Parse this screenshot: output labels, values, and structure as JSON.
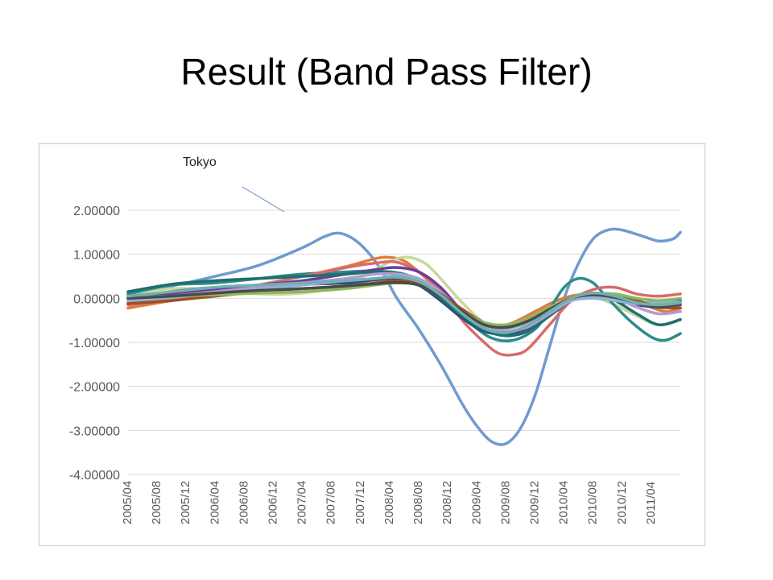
{
  "slide": {
    "title": "Result (Band Pass  Filter)"
  },
  "chart_data": {
    "type": "line",
    "ylim": [
      -4,
      2.2
    ],
    "y_ticks": [
      2,
      1,
      0,
      -1,
      -2,
      -3,
      -4
    ],
    "y_tick_labels": [
      "2.00000",
      "1.00000",
      "0.00000",
      "-1.00000",
      "-2.00000",
      "-3.00000",
      "-4.00000"
    ],
    "x_tick_labels": [
      "2005/04",
      "2005/08",
      "2005/12",
      "2006/04",
      "2006/08",
      "2006/12",
      "2007/04",
      "2007/08",
      "2007/12",
      "2008/04",
      "2008/08",
      "2008/12",
      "2009/04",
      "2009/08",
      "2009/12",
      "2010/04",
      "2010/08",
      "2010/12",
      "2011/04"
    ],
    "x_start": "2005/04",
    "x_end": "2011/06",
    "grid": true,
    "legend": "none",
    "annotation": {
      "text": "Tokyo",
      "points_to": "series-1"
    },
    "series": [
      {
        "color": "#6f9bcf",
        "values": [
          [
            0,
            0.08
          ],
          [
            6,
            0.28
          ],
          [
            12,
            0.5
          ],
          [
            18,
            0.75
          ],
          [
            24,
            1.15
          ],
          [
            27,
            1.4
          ],
          [
            29,
            1.48
          ],
          [
            31,
            1.35
          ],
          [
            33,
            1.05
          ],
          [
            35,
            0.6
          ],
          [
            37,
            0.0
          ],
          [
            40,
            -0.7
          ],
          [
            43,
            -1.5
          ],
          [
            46,
            -2.4
          ],
          [
            48,
            -2.9
          ],
          [
            50,
            -3.25
          ],
          [
            52,
            -3.3
          ],
          [
            54,
            -2.95
          ],
          [
            56,
            -2.2
          ],
          [
            58,
            -1.1
          ],
          [
            60,
            0.0
          ],
          [
            62,
            0.8
          ],
          [
            64,
            1.35
          ],
          [
            66,
            1.55
          ],
          [
            68,
            1.55
          ],
          [
            71,
            1.4
          ],
          [
            73,
            1.3
          ],
          [
            75,
            1.35
          ],
          [
            76,
            1.5
          ]
        ]
      },
      {
        "color": "#e07b39",
        "values": [
          [
            0,
            -0.22
          ],
          [
            6,
            -0.05
          ],
          [
            12,
            0.1
          ],
          [
            18,
            0.3
          ],
          [
            24,
            0.5
          ],
          [
            30,
            0.72
          ],
          [
            34,
            0.9
          ],
          [
            36,
            0.93
          ],
          [
            38,
            0.85
          ],
          [
            40,
            0.6
          ],
          [
            42,
            0.3
          ],
          [
            45,
            -0.2
          ],
          [
            48,
            -0.55
          ],
          [
            51,
            -0.62
          ],
          [
            53,
            -0.55
          ],
          [
            56,
            -0.3
          ],
          [
            59,
            -0.05
          ],
          [
            62,
            0.08
          ],
          [
            65,
            0.05
          ],
          [
            68,
            0.0
          ],
          [
            71,
            -0.15
          ],
          [
            74,
            -0.3
          ],
          [
            76,
            -0.22
          ]
        ]
      },
      {
        "color": "#c9d79a",
        "values": [
          [
            0,
            0.1
          ],
          [
            6,
            0.22
          ],
          [
            12,
            0.2
          ],
          [
            18,
            0.1
          ],
          [
            24,
            0.12
          ],
          [
            30,
            0.3
          ],
          [
            34,
            0.65
          ],
          [
            37,
            0.9
          ],
          [
            39,
            0.92
          ],
          [
            41,
            0.78
          ],
          [
            43,
            0.45
          ],
          [
            46,
            -0.1
          ],
          [
            49,
            -0.55
          ],
          [
            52,
            -0.7
          ],
          [
            55,
            -0.6
          ],
          [
            58,
            -0.35
          ],
          [
            61,
            -0.05
          ],
          [
            64,
            0.02
          ],
          [
            67,
            -0.15
          ],
          [
            70,
            -0.4
          ],
          [
            73,
            -0.6
          ],
          [
            76,
            -0.5
          ]
        ]
      },
      {
        "color": "#2e8b8b",
        "values": [
          [
            0,
            0.1
          ],
          [
            6,
            0.3
          ],
          [
            12,
            0.35
          ],
          [
            18,
            0.45
          ],
          [
            24,
            0.55
          ],
          [
            30,
            0.6
          ],
          [
            34,
            0.62
          ],
          [
            38,
            0.55
          ],
          [
            41,
            0.3
          ],
          [
            44,
            -0.1
          ],
          [
            47,
            -0.55
          ],
          [
            50,
            -0.9
          ],
          [
            53,
            -0.95
          ],
          [
            56,
            -0.7
          ],
          [
            58,
            -0.25
          ],
          [
            60,
            0.25
          ],
          [
            62,
            0.45
          ],
          [
            64,
            0.35
          ],
          [
            66,
            0.0
          ],
          [
            69,
            -0.5
          ],
          [
            72,
            -0.88
          ],
          [
            74,
            -0.95
          ],
          [
            76,
            -0.8
          ]
        ]
      },
      {
        "color": "#d96b6b",
        "values": [
          [
            0,
            -0.15
          ],
          [
            6,
            -0.02
          ],
          [
            12,
            0.15
          ],
          [
            18,
            0.3
          ],
          [
            24,
            0.5
          ],
          [
            30,
            0.7
          ],
          [
            34,
            0.8
          ],
          [
            37,
            0.82
          ],
          [
            40,
            0.6
          ],
          [
            43,
            0.2
          ],
          [
            46,
            -0.5
          ],
          [
            49,
            -1.0
          ],
          [
            51,
            -1.25
          ],
          [
            53,
            -1.28
          ],
          [
            55,
            -1.15
          ],
          [
            58,
            -0.6
          ],
          [
            61,
            -0.05
          ],
          [
            64,
            0.2
          ],
          [
            67,
            0.25
          ],
          [
            70,
            0.1
          ],
          [
            73,
            0.05
          ],
          [
            76,
            0.1
          ]
        ]
      },
      {
        "color": "#6a3d9a",
        "values": [
          [
            0,
            0.05
          ],
          [
            6,
            0.1
          ],
          [
            12,
            0.2
          ],
          [
            18,
            0.3
          ],
          [
            24,
            0.4
          ],
          [
            30,
            0.55
          ],
          [
            34,
            0.65
          ],
          [
            37,
            0.7
          ],
          [
            40,
            0.6
          ],
          [
            43,
            0.25
          ],
          [
            46,
            -0.3
          ],
          [
            49,
            -0.7
          ],
          [
            52,
            -0.8
          ],
          [
            55,
            -0.7
          ],
          [
            58,
            -0.35
          ],
          [
            61,
            -0.05
          ],
          [
            64,
            0.0
          ],
          [
            67,
            -0.05
          ],
          [
            70,
            -0.15
          ],
          [
            73,
            -0.2
          ],
          [
            76,
            -0.15
          ]
        ]
      },
      {
        "color": "#2c4a7c",
        "values": [
          [
            0,
            0.0
          ],
          [
            6,
            0.15
          ],
          [
            12,
            0.25
          ],
          [
            18,
            0.3
          ],
          [
            24,
            0.32
          ],
          [
            30,
            0.35
          ],
          [
            34,
            0.42
          ],
          [
            37,
            0.45
          ],
          [
            40,
            0.3
          ],
          [
            43,
            -0.05
          ],
          [
            46,
            -0.45
          ],
          [
            49,
            -0.75
          ],
          [
            52,
            -0.8
          ],
          [
            55,
            -0.65
          ],
          [
            58,
            -0.3
          ],
          [
            61,
            0.0
          ],
          [
            64,
            0.05
          ],
          [
            67,
            0.0
          ],
          [
            70,
            -0.1
          ],
          [
            73,
            -0.1
          ],
          [
            76,
            -0.05
          ]
        ]
      },
      {
        "color": "#1f6f6f",
        "values": [
          [
            0,
            0.15
          ],
          [
            6,
            0.32
          ],
          [
            12,
            0.4
          ],
          [
            18,
            0.45
          ],
          [
            24,
            0.5
          ],
          [
            30,
            0.55
          ],
          [
            34,
            0.6
          ],
          [
            37,
            0.55
          ],
          [
            40,
            0.35
          ],
          [
            43,
            0.0
          ],
          [
            46,
            -0.4
          ],
          [
            49,
            -0.72
          ],
          [
            52,
            -0.85
          ],
          [
            55,
            -0.75
          ],
          [
            58,
            -0.4
          ],
          [
            61,
            -0.05
          ],
          [
            64,
            0.1
          ],
          [
            67,
            -0.05
          ],
          [
            70,
            -0.35
          ],
          [
            73,
            -0.6
          ],
          [
            76,
            -0.48
          ]
        ]
      },
      {
        "color": "#b29ccf",
        "values": [
          [
            0,
            -0.05
          ],
          [
            6,
            0.05
          ],
          [
            12,
            0.15
          ],
          [
            18,
            0.25
          ],
          [
            24,
            0.35
          ],
          [
            30,
            0.45
          ],
          [
            34,
            0.55
          ],
          [
            37,
            0.55
          ],
          [
            40,
            0.45
          ],
          [
            43,
            0.15
          ],
          [
            46,
            -0.3
          ],
          [
            49,
            -0.65
          ],
          [
            52,
            -0.75
          ],
          [
            55,
            -0.65
          ],
          [
            58,
            -0.35
          ],
          [
            61,
            -0.05
          ],
          [
            64,
            0.05
          ],
          [
            67,
            0.0
          ],
          [
            70,
            -0.2
          ],
          [
            73,
            -0.35
          ],
          [
            76,
            -0.3
          ]
        ]
      },
      {
        "color": "#8fb3d9",
        "values": [
          [
            0,
            -0.08
          ],
          [
            6,
            0.0
          ],
          [
            12,
            0.1
          ],
          [
            18,
            0.2
          ],
          [
            24,
            0.3
          ],
          [
            30,
            0.4
          ],
          [
            34,
            0.45
          ],
          [
            37,
            0.5
          ],
          [
            40,
            0.4
          ],
          [
            43,
            0.1
          ],
          [
            46,
            -0.3
          ],
          [
            49,
            -0.6
          ],
          [
            52,
            -0.68
          ],
          [
            55,
            -0.55
          ],
          [
            58,
            -0.3
          ],
          [
            61,
            -0.05
          ],
          [
            64,
            0.0
          ],
          [
            67,
            -0.05
          ],
          [
            70,
            -0.12
          ],
          [
            73,
            -0.1
          ],
          [
            76,
            -0.08
          ]
        ]
      },
      {
        "color": "#a04e22",
        "values": [
          [
            0,
            -0.12
          ],
          [
            6,
            -0.05
          ],
          [
            12,
            0.05
          ],
          [
            18,
            0.15
          ],
          [
            24,
            0.22
          ],
          [
            30,
            0.28
          ],
          [
            34,
            0.35
          ],
          [
            37,
            0.4
          ],
          [
            40,
            0.35
          ],
          [
            43,
            0.1
          ],
          [
            46,
            -0.25
          ],
          [
            49,
            -0.55
          ],
          [
            52,
            -0.62
          ],
          [
            55,
            -0.5
          ],
          [
            58,
            -0.25
          ],
          [
            61,
            0.0
          ],
          [
            64,
            0.1
          ],
          [
            67,
            0.05
          ],
          [
            70,
            -0.05
          ],
          [
            73,
            -0.2
          ],
          [
            76,
            -0.22
          ]
        ]
      },
      {
        "color": "#8cb860",
        "values": [
          [
            0,
            0.02
          ],
          [
            6,
            0.05
          ],
          [
            12,
            0.08
          ],
          [
            18,
            0.12
          ],
          [
            24,
            0.15
          ],
          [
            30,
            0.22
          ],
          [
            34,
            0.3
          ],
          [
            37,
            0.35
          ],
          [
            40,
            0.3
          ],
          [
            43,
            0.05
          ],
          [
            46,
            -0.3
          ],
          [
            49,
            -0.55
          ],
          [
            52,
            -0.6
          ],
          [
            55,
            -0.45
          ],
          [
            58,
            -0.2
          ],
          [
            61,
            0.0
          ],
          [
            64,
            0.1
          ],
          [
            67,
            0.1
          ],
          [
            70,
            0.0
          ],
          [
            73,
            -0.05
          ],
          [
            76,
            0.0
          ]
        ]
      },
      {
        "color": "#4a4a4a",
        "values": [
          [
            0,
            0.0
          ],
          [
            6,
            0.05
          ],
          [
            12,
            0.12
          ],
          [
            18,
            0.18
          ],
          [
            24,
            0.22
          ],
          [
            30,
            0.28
          ],
          [
            34,
            0.33
          ],
          [
            37,
            0.36
          ],
          [
            40,
            0.3
          ],
          [
            43,
            0.05
          ],
          [
            46,
            -0.3
          ],
          [
            49,
            -0.6
          ],
          [
            52,
            -0.66
          ],
          [
            55,
            -0.52
          ],
          [
            58,
            -0.25
          ],
          [
            61,
            0.0
          ],
          [
            64,
            0.08
          ],
          [
            67,
            0.02
          ],
          [
            70,
            -0.1
          ],
          [
            73,
            -0.2
          ],
          [
            76,
            -0.12
          ]
        ]
      },
      {
        "color": "#6fb0b0",
        "values": [
          [
            0,
            0.05
          ],
          [
            6,
            0.15
          ],
          [
            12,
            0.25
          ],
          [
            18,
            0.3
          ],
          [
            24,
            0.35
          ],
          [
            30,
            0.4
          ],
          [
            34,
            0.45
          ],
          [
            37,
            0.48
          ],
          [
            40,
            0.38
          ],
          [
            43,
            0.08
          ],
          [
            46,
            -0.35
          ],
          [
            49,
            -0.68
          ],
          [
            52,
            -0.78
          ],
          [
            55,
            -0.62
          ],
          [
            58,
            -0.3
          ],
          [
            61,
            0.0
          ],
          [
            64,
            0.12
          ],
          [
            67,
            0.05
          ],
          [
            70,
            -0.1
          ],
          [
            73,
            -0.15
          ],
          [
            76,
            -0.1
          ]
        ]
      }
    ]
  }
}
